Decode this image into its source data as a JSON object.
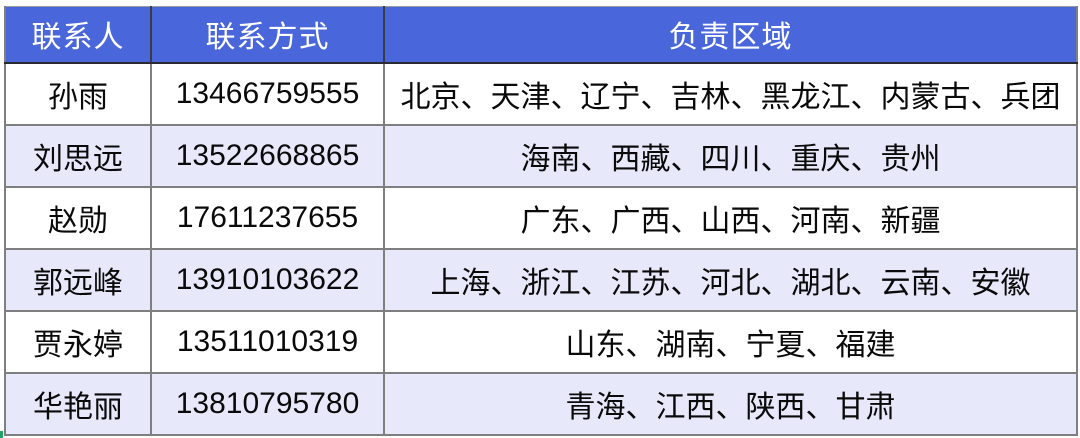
{
  "colors": {
    "header_bg": "#4a66db",
    "header_text": "#ffffff",
    "row_bg": "#ffffff",
    "row_alt_bg": "#e7e9fb",
    "border_gray": "#7f7f7f",
    "green_mark": "#21a366"
  },
  "table": {
    "columns": [
      "联系人",
      "联系方式",
      "负责区域"
    ],
    "rows": [
      {
        "name": "孙雨",
        "phone": "13466759555",
        "regions": "北京、天津、辽宁、吉林、黑龙江、内蒙古、兵团"
      },
      {
        "name": "刘思远",
        "phone": "13522668865",
        "regions": "海南、西藏、四川、重庆、贵州"
      },
      {
        "name": "赵勋",
        "phone": "17611237655",
        "regions": "广东、广西、山西、河南、新疆"
      },
      {
        "name": "郭远峰",
        "phone": "13910103622",
        "regions": "上海、浙江、江苏、河北、湖北、云南、安徽"
      },
      {
        "name": "贾永婷",
        "phone": "13511010319",
        "regions": "山东、湖南、宁夏、福建"
      },
      {
        "name": "华艳丽",
        "phone": "13810795780",
        "regions": "青海、江西、陕西、甘肃"
      }
    ]
  }
}
